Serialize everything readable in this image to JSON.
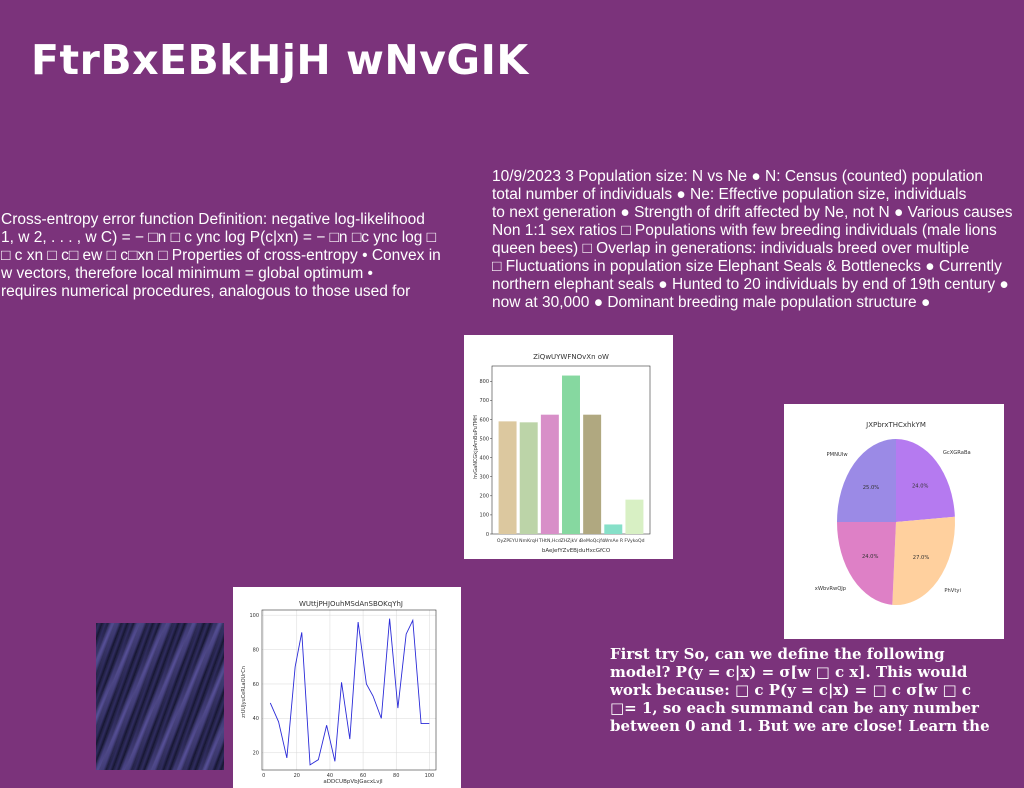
{
  "title": "FtrBxEBkHjH  wNvGIK",
  "left_text": "Cross-entropy error function Definition: negative log-likelihood\n1, w 2, . . . , w C) = − □n □ c ync log P(c|xn) = − □n □c ync log □\n□ c xn □ c□ ew □ c□xn □ Properties of cross-entropy • Convex in\nw vectors, therefore local minimum = global optimum •\nrequires numerical procedures, analogous to those used for",
  "right_text": "10/9/2023 3 Population size: N vs Ne ● N: Census (counted) population\ntotal number of individuals ● Ne: Effective population size, individuals\nto next generation ● Strength of drift affected by Ne, not N ● Various causes\nNon 1:1 sex ratios □ Populations with few breeding individuals (male lions\nqueen bees) □ Overlap in generations: individuals breed over multiple\n□ Fluctuations in population size Elephant Seals & Bottlenecks ● Currently\nnorthern elephant seals ● Hunted to 20 individuals by end of 19th century ●\nnow at 30,000 ● Dominant breeding male population structure ●",
  "bottom_text": "First try So, can we define the following\nmodel? P(y = c|x) = σ[w □ c x]. This would\nwork because: □ c P(y = c|x) = □ c σ[w □ c\n□= 1, so each summand can be any number\nbetween 0 and 1. But we are close! Learn the",
  "chart_data": [
    {
      "type": "bar",
      "title": "ZiQwUYWFNOvXn oW",
      "xlabel": "bAeJefYZvEBjduHxcGfCO",
      "ylabel": "hvGaNCGkjpAmBuPuTMH",
      "categories": [
        "OyZPEYU",
        "NmKrqH",
        "THtN,Hcd",
        "ZHZjkV c",
        "BeMoQcjfs",
        "WmAe R",
        "FVykoQd"
      ],
      "values": [
        590,
        585,
        625,
        830,
        625,
        50,
        180
      ],
      "colors": [
        "#dcc89f",
        "#bcd4a8",
        "#d88fc8",
        "#86d8a0",
        "#b0a880",
        "#86e0c8",
        "#d8f0c4"
      ],
      "ylim": [
        0,
        880
      ],
      "yticks": [
        0,
        100,
        200,
        300,
        400,
        500,
        600,
        700,
        800
      ]
    },
    {
      "type": "pie",
      "title": "JXPbrxTHCxhkYM",
      "labels": [
        "GcXGRaBa",
        "PhVtyi",
        "xWbvRwQJp",
        "PMNUIw"
      ],
      "values": [
        24.0,
        27.0,
        24.0,
        25.0
      ],
      "value_labels": [
        "24.0%",
        "27.0%",
        "24.0%",
        "25.0%"
      ],
      "colors": [
        "#b57af0",
        "#ffd09e",
        "#de80c6",
        "#9b8ae6"
      ]
    },
    {
      "type": "line",
      "title": "WUttjPHJOuhMSdAnSBOKqYhJ",
      "xlabel": "aDDCUBpVbJGacxLvjI",
      "ylabel": "zrUUJyuCeRLaOUrCn",
      "x": [
        4,
        9,
        14,
        19,
        23,
        28,
        33,
        38,
        43,
        47,
        52,
        57,
        62,
        66,
        71,
        76,
        81,
        86,
        90,
        95,
        100
      ],
      "y": [
        49,
        38,
        17,
        70,
        90,
        13,
        16,
        36,
        15,
        61,
        28,
        96,
        60,
        53,
        40,
        98,
        46,
        89,
        97,
        37,
        37
      ],
      "color": "#2b2bd8",
      "xlim": [
        -1,
        104
      ],
      "ylim": [
        10,
        103
      ],
      "xticks": [
        0,
        20,
        40,
        60,
        80,
        100
      ],
      "yticks": [
        20,
        40,
        60,
        80,
        100
      ]
    }
  ]
}
